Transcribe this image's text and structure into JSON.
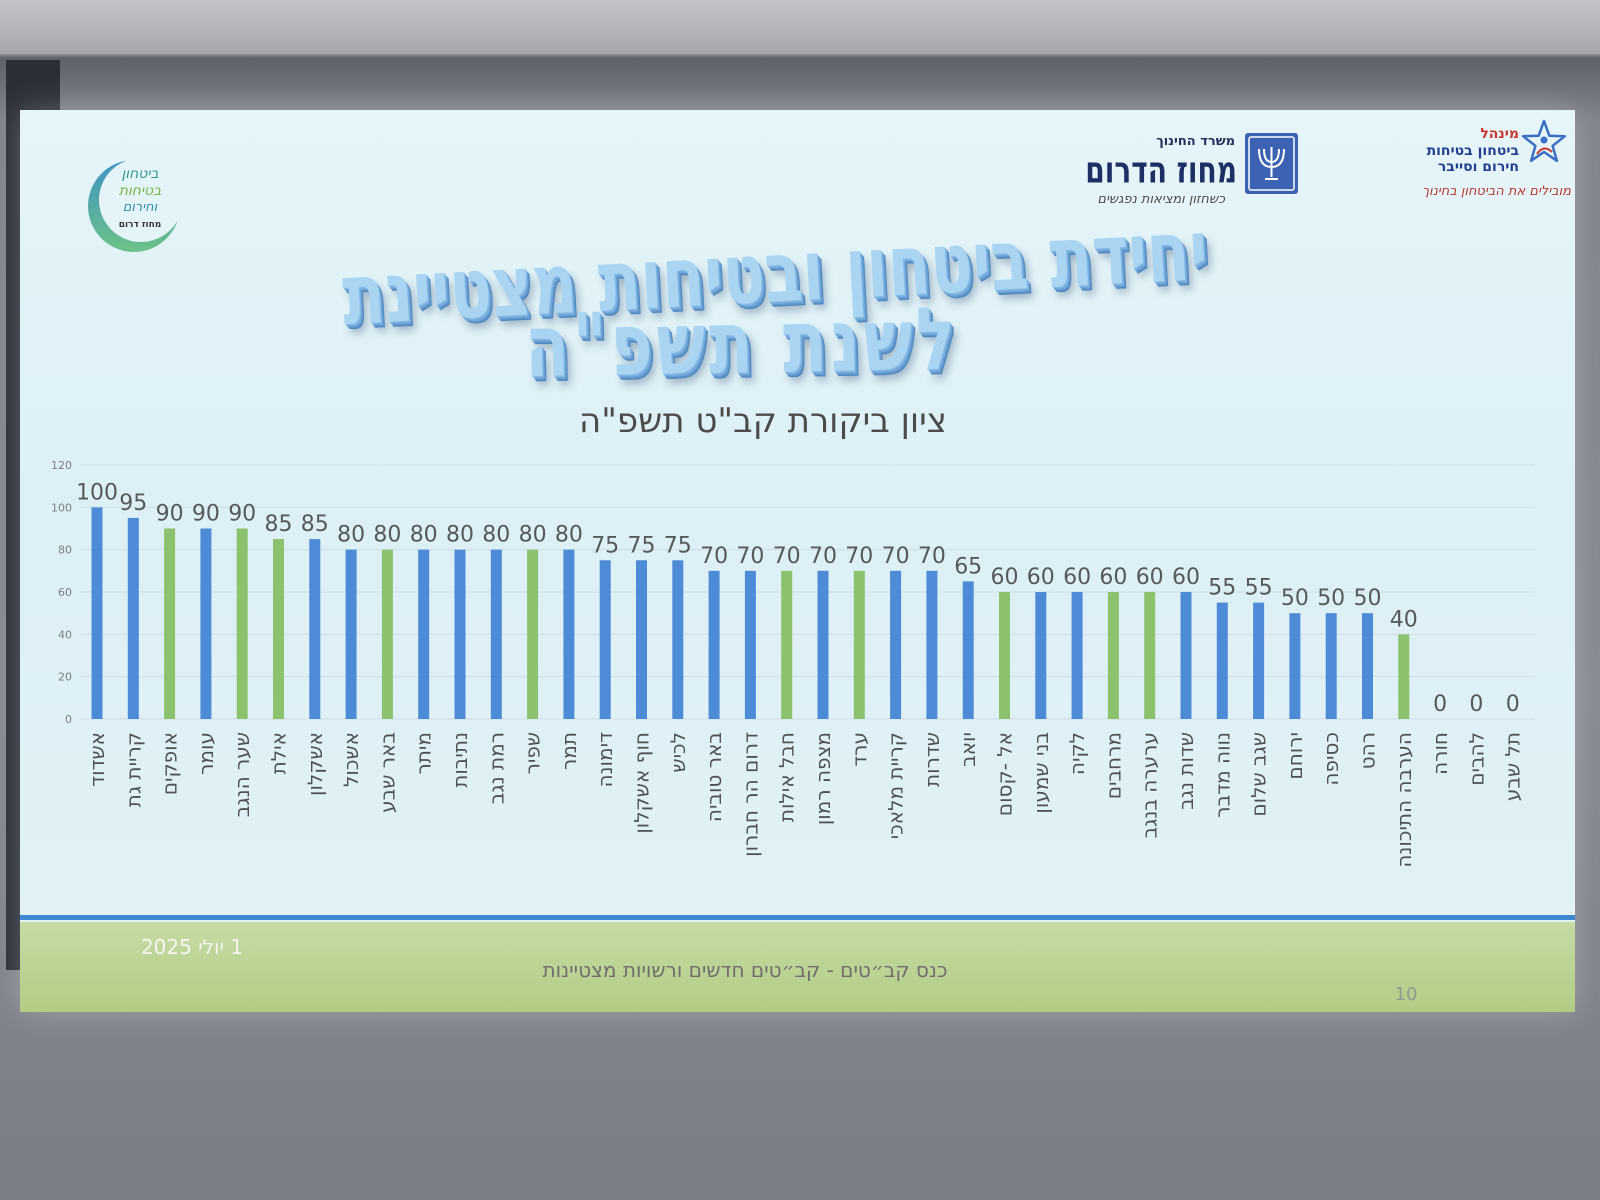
{
  "logos": {
    "directorate": {
      "line1": "מינהל",
      "line2": "ביטחון בטיחות",
      "line3": "חירום וסייבר",
      "tagline": "מובילים את הביטחון בחינוך",
      "icon": "star-emblem-icon"
    },
    "district": {
      "ministry": "משרד החינוך",
      "name": "מחוז הדרום",
      "tagline": "כשחזון ומציאות נפגשים",
      "icon": "state-emblem-icon"
    },
    "unit": {
      "line1": "ביטחון",
      "line2": "בטיחות",
      "line3": "וחירום",
      "line4": "מחוז דרום",
      "icon": "crescent-ring-icon"
    }
  },
  "slide": {
    "title_line1": "יחידת ביטחון ובטיחות מצטיינת",
    "title_line2": "לשנת תשפ\"ה"
  },
  "footer": {
    "date": "1 יולי 2025",
    "event": "כנס קב״טים - קב״טים חדשים ורשויות מצטיינות",
    "page_number": "10"
  },
  "colors": {
    "bar_blue": "#4e8bd6",
    "bar_green": "#8cc26d",
    "title_fill": "#a9d5f3",
    "footer_line": "#3f86d3",
    "footer_band": "#b9d08f"
  },
  "chart_data": {
    "type": "bar",
    "title": "ציון ביקורת קב\"ט תשפ\"ה",
    "xlabel": "",
    "ylabel": "",
    "categories": [
      "אשדוד",
      "קריית גת",
      "אופקים",
      "עומר",
      "שער הנגב",
      "אילת",
      "אשקלון",
      "אשכול",
      "באר שבע",
      "מיתר",
      "נתיבות",
      "רמת נגב",
      "שפיר",
      "תמר",
      "דימונה",
      "חוף אשקלון",
      "לכיש",
      "באר טוביה",
      "דרום הר חברון",
      "חבל אילות",
      "מצפה רמון",
      "ערד",
      "קריית מלאכי",
      "שדרות",
      "יואב",
      "אל -קסום",
      "בני שמעון",
      "לקיה",
      "מרחבים",
      "ערערה בנגב",
      "שדות נגב",
      "נווה מדבר",
      "שגב שלום",
      "ירוחם",
      "כסיפה",
      "רהט",
      "הערבה התיכונה",
      "חורה",
      "להבים",
      "תל שבע"
    ],
    "values": [
      100,
      95,
      90,
      90,
      90,
      85,
      85,
      80,
      80,
      80,
      80,
      80,
      80,
      80,
      75,
      75,
      75,
      70,
      70,
      70,
      70,
      70,
      70,
      70,
      65,
      60,
      60,
      60,
      60,
      60,
      60,
      55,
      55,
      50,
      50,
      50,
      40,
      0,
      0,
      0
    ],
    "bar_colors": [
      "#4e8bd6",
      "#4e8bd6",
      "#8cc26d",
      "#4e8bd6",
      "#8cc26d",
      "#8cc26d",
      "#4e8bd6",
      "#4e8bd6",
      "#8cc26d",
      "#4e8bd6",
      "#4e8bd6",
      "#4e8bd6",
      "#8cc26d",
      "#4e8bd6",
      "#4e8bd6",
      "#4e8bd6",
      "#4e8bd6",
      "#4e8bd6",
      "#4e8bd6",
      "#8cc26d",
      "#4e8bd6",
      "#8cc26d",
      "#4e8bd6",
      "#4e8bd6",
      "#4e8bd6",
      "#8cc26d",
      "#4e8bd6",
      "#4e8bd6",
      "#8cc26d",
      "#8cc26d",
      "#4e8bd6",
      "#4e8bd6",
      "#4e8bd6",
      "#4e8bd6",
      "#4e8bd6",
      "#4e8bd6",
      "#8cc26d",
      "#4e8bd6",
      "#4e8bd6",
      "#4e8bd6"
    ],
    "ylim": [
      0,
      120
    ],
    "yticks": [
      0,
      20,
      40,
      60,
      80,
      100,
      120
    ],
    "grid": true,
    "legend": "none",
    "data_labels": true
  }
}
